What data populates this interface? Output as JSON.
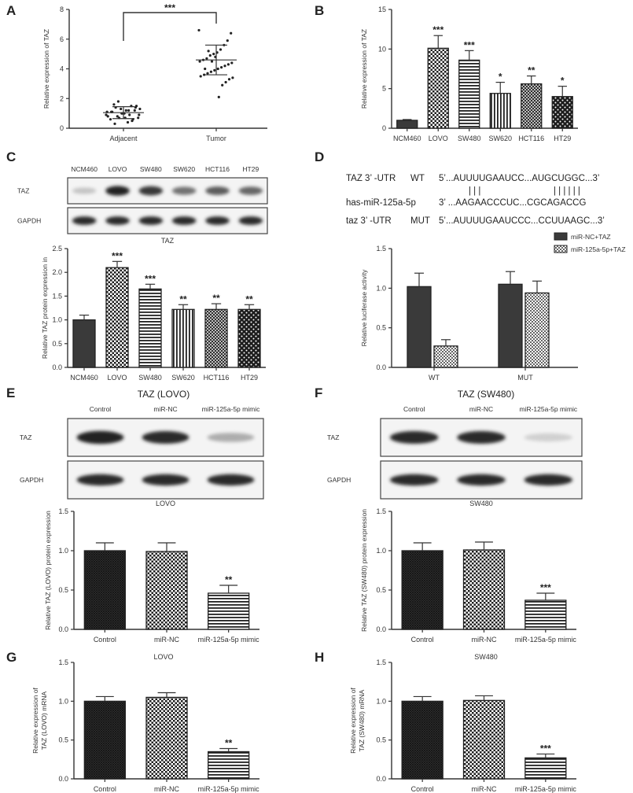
{
  "panel_letters": [
    "A",
    "B",
    "C",
    "D",
    "E",
    "F",
    "G",
    "H"
  ],
  "panelA": {
    "type": "scatter",
    "categories": [
      "Adjacent",
      "Tumor"
    ],
    "ylabel": "Relative expression of TAZ",
    "ylim": [
      0,
      8
    ],
    "yticks": [
      0,
      2,
      4,
      6,
      8
    ],
    "means": [
      1.05,
      4.6
    ],
    "sd": [
      0.4,
      1.0
    ],
    "significance": "***",
    "points": [
      [
        0.9,
        0.7,
        1.2,
        1.5,
        0.4,
        1.0,
        1.3,
        0.8,
        1.6,
        0.6,
        1.1,
        0.9,
        1.4,
        0.5,
        1.2,
        0.7,
        1.0,
        1.8,
        0.3,
        1.1,
        0.8,
        1.3,
        1.5,
        0.6,
        0.9,
        1.2,
        1.0,
        0.7,
        1.4,
        1.1
      ],
      [
        6.6,
        6.4,
        5.9,
        5.6,
        5.3,
        5.1,
        5.0,
        4.9,
        4.7,
        4.6,
        4.5,
        4.4,
        4.3,
        4.2,
        4.1,
        4.0,
        3.9,
        3.8,
        3.7,
        3.6,
        3.5,
        3.4,
        3.3,
        3.1,
        2.9,
        2.1,
        4.8,
        4.5,
        5.2,
        4.0
      ]
    ]
  },
  "panelB": {
    "type": "bar",
    "categories": [
      "NCM460",
      "LOVO",
      "SW480",
      "SW620",
      "HCT116",
      "HT29"
    ],
    "values": [
      1.0,
      10.1,
      8.6,
      4.4,
      5.6,
      4.0
    ],
    "errors": [
      0.1,
      1.6,
      1.2,
      1.4,
      1.0,
      1.3
    ],
    "stars": [
      "",
      "***",
      "***",
      "*",
      "**",
      "*"
    ],
    "ylabel": "Relative expression of TAZ",
    "ylim": [
      0,
      15
    ],
    "yticks": [
      0,
      5,
      10,
      15
    ]
  },
  "panelC": {
    "blot_lanes": [
      "NCM460",
      "LOVO",
      "SW480",
      "SW620",
      "HCT116",
      "HT29"
    ],
    "blot_rows": [
      "TAZ",
      "GAPDH"
    ],
    "blot_caption": "TAZ",
    "taz_intensity": [
      0.25,
      0.95,
      0.85,
      0.6,
      0.7,
      0.65
    ],
    "chart": {
      "type": "bar",
      "categories": [
        "NCM460",
        "LOVO",
        "SW480",
        "SW620",
        "HCT116",
        "HT29"
      ],
      "values": [
        1.0,
        2.1,
        1.65,
        1.22,
        1.22,
        1.22
      ],
      "errors": [
        0.1,
        0.13,
        0.1,
        0.1,
        0.12,
        0.1
      ],
      "stars": [
        "",
        "***",
        "***",
        "**",
        "**",
        "**"
      ],
      "ylabel": "Relative TAZ protein expression in",
      "ylim": [
        0,
        2.5
      ],
      "yticks": [
        "0.0",
        "0.5",
        "1.0",
        "1.5",
        "2.0",
        "2.5"
      ]
    }
  },
  "panelD": {
    "seq_rows": [
      {
        "left": "TAZ 3’ -UTR",
        "mid": "WT",
        "seq": "5’...AUUUUGAAUCC...AUGCUGGC...3’"
      },
      {
        "left": "has-miR-125a-5p",
        "mid": "",
        "seq": "3’ ...AAGAACCCUC...CGCAGACCG"
      },
      {
        "left": "taz 3’ -UTR",
        "mid": "MUT",
        "seq": "5’...AUUUUGAAUCCC...CCUUAAGC...3’"
      }
    ],
    "pair_marks_1": "| | |",
    "pair_marks_2": "| | | | | |",
    "legend": [
      "miR-NC+TAZ",
      "miR-125a-5p+TAZ"
    ],
    "chart": {
      "type": "bar",
      "categories": [
        "WT",
        "MUT"
      ],
      "series": [
        {
          "name": "miR-NC+TAZ",
          "values": [
            1.02,
            1.05
          ],
          "errors": [
            0.17,
            0.16
          ]
        },
        {
          "name": "miR-125a-5p+TAZ",
          "values": [
            0.27,
            0.94
          ],
          "errors": [
            0.08,
            0.15
          ]
        }
      ],
      "ylabel": "Relative luciferase activity",
      "ylim": [
        0,
        1.5
      ],
      "yticks": [
        "0.0",
        "0.5",
        "1.0",
        "1.5"
      ]
    }
  },
  "panelE": {
    "title": "TAZ (LOVO)",
    "blot_lanes": [
      "Control",
      "miR-NC",
      "miR-125a-5p mimic"
    ],
    "blot_rows": [
      "TAZ",
      "GAPDH"
    ],
    "blot_caption": "LOVO",
    "taz_intensity": [
      0.95,
      0.9,
      0.35
    ],
    "chart": {
      "type": "bar",
      "categories": [
        "Control",
        "miR-NC",
        "miR-125a-5p mimic"
      ],
      "values": [
        1.0,
        0.99,
        0.46
      ],
      "errors": [
        0.1,
        0.11,
        0.1
      ],
      "stars": [
        "",
        "",
        "**"
      ],
      "ylabel": "Relative TAZ (LOVO) protein expression",
      "ylim": [
        0,
        1.5
      ],
      "yticks": [
        "0.0",
        "0.5",
        "1.0",
        "1.5"
      ]
    }
  },
  "panelF": {
    "title": "TAZ (SW480)",
    "blot_lanes": [
      "Control",
      "miR-NC",
      "miR-125a-5p mimic"
    ],
    "blot_rows": [
      "TAZ",
      "GAPDH"
    ],
    "blot_caption": "SW480",
    "taz_intensity": [
      0.9,
      0.9,
      0.2
    ],
    "chart": {
      "type": "bar",
      "categories": [
        "Control",
        "miR-NC",
        "miR-125a-5p mimic"
      ],
      "values": [
        1.0,
        1.01,
        0.37
      ],
      "errors": [
        0.1,
        0.1,
        0.09
      ],
      "stars": [
        "",
        "",
        "***"
      ],
      "ylabel": "Relative TAZ (SW480) protein expression",
      "ylim": [
        0,
        1.5
      ],
      "yticks": [
        "0.0",
        "0.5",
        "1.0",
        "1.5"
      ]
    }
  },
  "panelG": {
    "caption": "LOVO",
    "chart": {
      "type": "bar",
      "categories": [
        "Control",
        "miR-NC",
        "miR-125a-5p mimic"
      ],
      "values": [
        1.0,
        1.05,
        0.35
      ],
      "errors": [
        0.06,
        0.06,
        0.04
      ],
      "stars": [
        "",
        "",
        "**"
      ],
      "ylabel": [
        "Relative expression of",
        "TAZ (LOVO) mRNA"
      ],
      "ylim": [
        0,
        1.5
      ],
      "yticks": [
        "0.0",
        "0.5",
        "1.0",
        "1.5"
      ]
    }
  },
  "panelH": {
    "caption": "SW480",
    "chart": {
      "type": "bar",
      "categories": [
        "Control",
        "miR-NC",
        "miR-125a-5p mimic"
      ],
      "values": [
        1.0,
        1.01,
        0.27
      ],
      "errors": [
        0.06,
        0.06,
        0.05
      ],
      "stars": [
        "",
        "",
        "***"
      ],
      "ylabel": [
        "Relative expression of",
        "TAZ (SW480) mRNA"
      ],
      "ylim": [
        0,
        1.5
      ],
      "yticks": [
        "0.0",
        "0.5",
        "1.0",
        "1.5"
      ]
    }
  },
  "fills": {
    "dark": "#3a3a3a",
    "checker": "#1e1e1e",
    "stripe": "#222222",
    "paper": "#ffffff"
  }
}
